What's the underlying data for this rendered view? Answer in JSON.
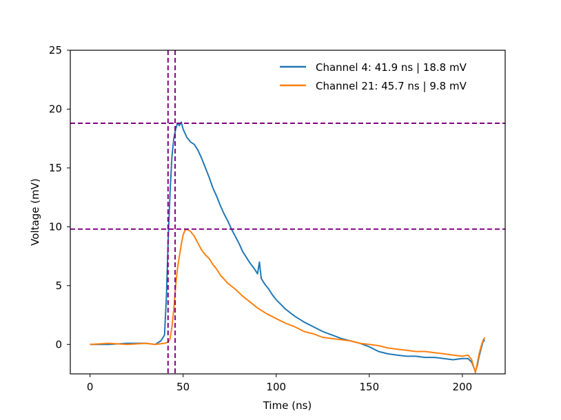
{
  "chart_data": {
    "type": "line",
    "title": "",
    "xlabel": "Time (ns)",
    "ylabel": "Voltage (mV)",
    "xlim": [
      -10.6,
      223
    ],
    "ylim": [
      -2.5,
      25
    ],
    "xticks": [
      0,
      50,
      100,
      150,
      200
    ],
    "yticks": [
      0,
      5,
      10,
      15,
      20,
      25
    ],
    "xtick_labels": [
      "0",
      "50",
      "100",
      "150",
      "200"
    ],
    "ytick_labels": [
      "0",
      "5",
      "10",
      "15",
      "20",
      "25"
    ],
    "grid": false,
    "legend_position": "top-right",
    "series": [
      {
        "name": "Channel 4: 41.9 ns | 18.8 mV",
        "color": "#1f77b4",
        "x": [
          0,
          10,
          20,
          30,
          35,
          38,
          40,
          41,
          42,
          43,
          44,
          45,
          46,
          47,
          48,
          49,
          50,
          52,
          54,
          56,
          58,
          60,
          62,
          64,
          66,
          68,
          70,
          72,
          74,
          76,
          78,
          80,
          82,
          84,
          86,
          88,
          90,
          91,
          92,
          94,
          96,
          98,
          100,
          105,
          110,
          115,
          120,
          125,
          130,
          135,
          140,
          145,
          150,
          155,
          160,
          165,
          170,
          175,
          180,
          185,
          190,
          195,
          200,
          203,
          205,
          207,
          208,
          209,
          210,
          211,
          212
        ],
        "y": [
          0,
          0,
          0.1,
          0.1,
          0,
          0.3,
          0.8,
          4,
          9,
          13,
          16,
          17.5,
          18.3,
          18.8,
          18.6,
          18.9,
          18.3,
          17.6,
          17.2,
          17,
          16.5,
          15.8,
          15,
          14.2,
          13.3,
          12.6,
          11.8,
          11.1,
          10.5,
          9.8,
          9.2,
          8.6,
          7.9,
          7.4,
          6.9,
          6.5,
          6,
          7,
          5.6,
          5.1,
          4.7,
          4.2,
          3.8,
          3,
          2.4,
          1.9,
          1.5,
          1.1,
          0.8,
          0.5,
          0.3,
          0.1,
          -0.2,
          -0.6,
          -0.8,
          -0.9,
          -1.0,
          -1.0,
          -1.1,
          -1.1,
          -1.2,
          -1.3,
          -1.2,
          -1.2,
          -1.5,
          -2.3,
          -1.8,
          -1.0,
          -0.4,
          0.2,
          0.4
        ]
      },
      {
        "name": "Channel 21: 45.7 ns | 9.8 mV",
        "color": "#ff7f0e",
        "x": [
          0,
          10,
          20,
          30,
          35,
          40,
          42,
          43,
          44,
          45,
          46,
          47,
          48,
          49,
          50,
          51,
          52,
          54,
          56,
          58,
          60,
          62,
          64,
          66,
          68,
          70,
          74,
          78,
          82,
          86,
          90,
          95,
          100,
          105,
          110,
          115,
          120,
          125,
          130,
          135,
          140,
          145,
          150,
          155,
          160,
          165,
          170,
          175,
          180,
          185,
          190,
          195,
          200,
          203,
          205,
          207,
          208,
          209,
          210,
          211,
          212
        ],
        "y": [
          0,
          0.1,
          0,
          0.1,
          0,
          0.1,
          0.2,
          0.5,
          1.5,
          3,
          5,
          6.5,
          7.5,
          8.5,
          9.3,
          9.7,
          9.8,
          9.6,
          9.2,
          8.6,
          8,
          7.6,
          7.3,
          6.8,
          6.4,
          5.9,
          5.2,
          4.7,
          4.1,
          3.6,
          3.1,
          2.6,
          2.2,
          1.8,
          1.5,
          1.1,
          0.9,
          0.6,
          0.5,
          0.4,
          0.3,
          0.1,
          0,
          -0.1,
          -0.3,
          -0.4,
          -0.5,
          -0.6,
          -0.6,
          -0.7,
          -0.8,
          -0.9,
          -1.0,
          -0.9,
          -1.3,
          -2.4,
          -1.6,
          -0.8,
          -0.2,
          0.3,
          0.6
        ]
      }
    ],
    "reference_lines": {
      "color": "#800080",
      "vertical_x": [
        41.9,
        45.7
      ],
      "horizontal_y": [
        18.8,
        9.8
      ]
    }
  }
}
